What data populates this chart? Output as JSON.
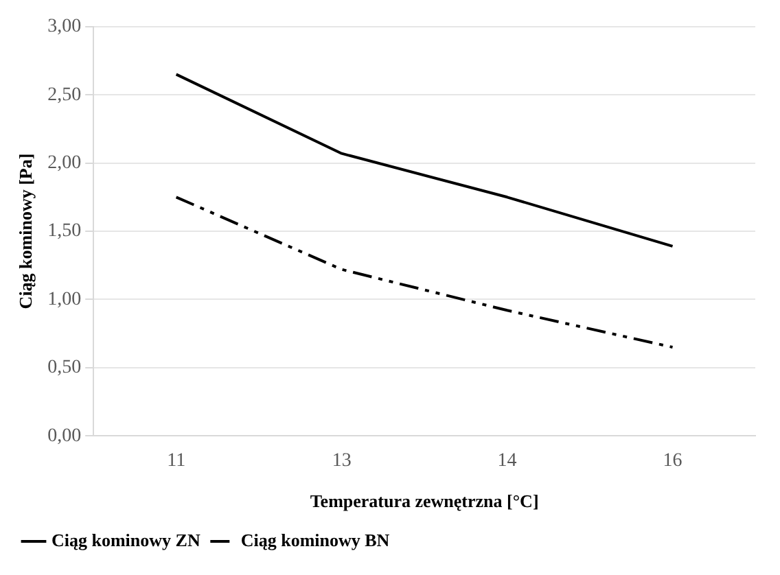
{
  "chart_data": {
    "type": "line",
    "xlabel": "Temperatura zewnętrzna [°C]",
    "ylabel": "Ciąg kominowy [Pa]",
    "categories": [
      "11",
      "13",
      "14",
      "16"
    ],
    "series": [
      {
        "name": "Ciąg kominowy ZN",
        "color": "#000000",
        "values": [
          2.65,
          2.07,
          1.75,
          1.39
        ],
        "line_style": "solid"
      },
      {
        "name": "Ciąg kominowy BN",
        "color": "#000000",
        "values": [
          1.75,
          1.22,
          0.92,
          0.65
        ],
        "line_style": "dashed"
      }
    ],
    "ylim": [
      0,
      3
    ],
    "yticks": [
      {
        "value": 0,
        "label": "0,00"
      },
      {
        "value": 0.5,
        "label": "0,50"
      },
      {
        "value": 1,
        "label": "1,00"
      },
      {
        "value": 1.5,
        "label": "1,50"
      },
      {
        "value": 2,
        "label": "2,00"
      },
      {
        "value": 2.5,
        "label": "2,50"
      },
      {
        "value": 3,
        "label": "3,00"
      }
    ],
    "grid": "y",
    "legend": "bottom left",
    "marker": "none"
  }
}
